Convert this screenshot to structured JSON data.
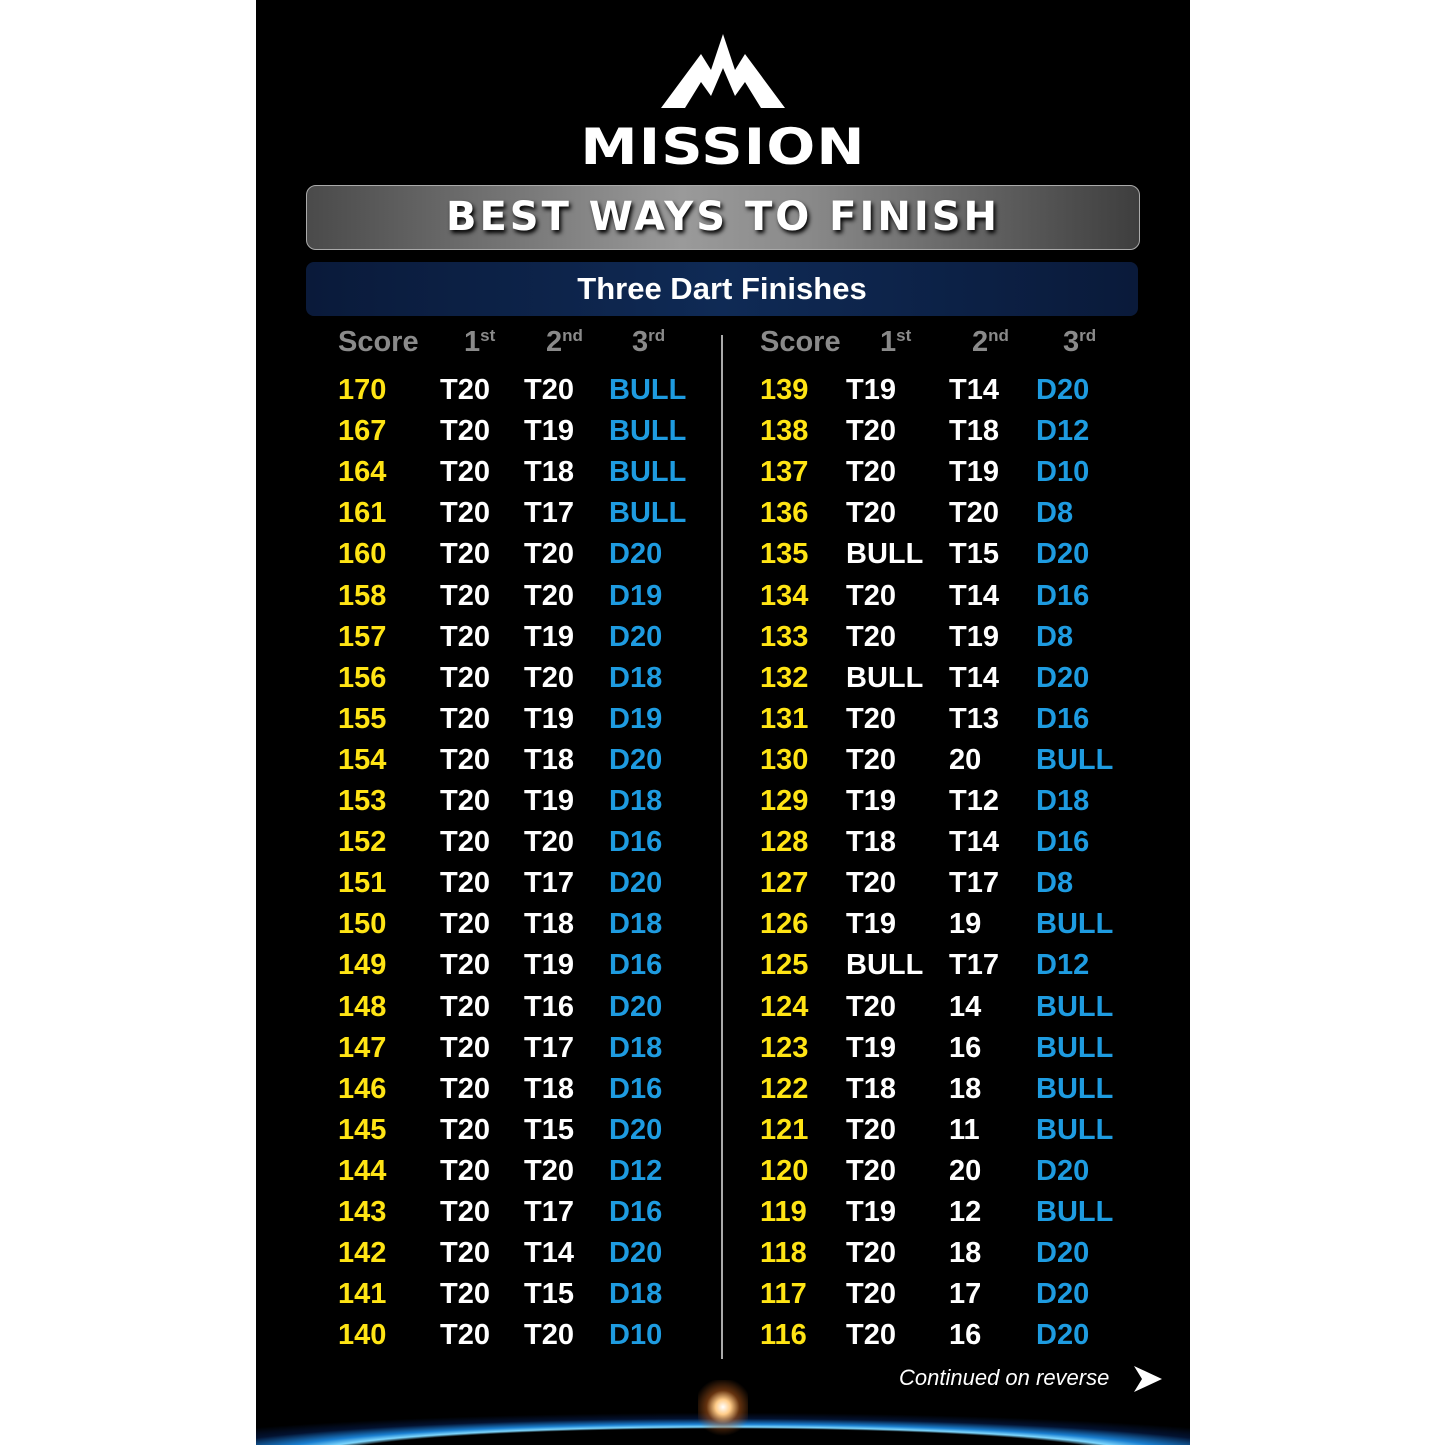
{
  "brand": "MISSION",
  "title": "BEST WAYS TO FINISH",
  "subtitle": "Three Dart Finishes",
  "headers": [
    {
      "num": "Score",
      "sup": ""
    },
    {
      "num": "1",
      "sup": "st"
    },
    {
      "num": "2",
      "sup": "nd"
    },
    {
      "num": "3",
      "sup": "rd"
    }
  ],
  "left_rows": [
    [
      "170",
      "T20",
      "T20",
      "BULL"
    ],
    [
      "167",
      "T20",
      "T19",
      "BULL"
    ],
    [
      "164",
      "T20",
      "T18",
      "BULL"
    ],
    [
      "161",
      "T20",
      "T17",
      "BULL"
    ],
    [
      "160",
      "T20",
      "T20",
      "D20"
    ],
    [
      "158",
      "T20",
      "T20",
      "D19"
    ],
    [
      "157",
      "T20",
      "T19",
      "D20"
    ],
    [
      "156",
      "T20",
      "T20",
      "D18"
    ],
    [
      "155",
      "T20",
      "T19",
      "D19"
    ],
    [
      "154",
      "T20",
      "T18",
      "D20"
    ],
    [
      "153",
      "T20",
      "T19",
      "D18"
    ],
    [
      "152",
      "T20",
      "T20",
      "D16"
    ],
    [
      "151",
      "T20",
      "T17",
      "D20"
    ],
    [
      "150",
      "T20",
      "T18",
      "D18"
    ],
    [
      "149",
      "T20",
      "T19",
      "D16"
    ],
    [
      "148",
      "T20",
      "T16",
      "D20"
    ],
    [
      "147",
      "T20",
      "T17",
      "D18"
    ],
    [
      "146",
      "T20",
      "T18",
      "D16"
    ],
    [
      "145",
      "T20",
      "T15",
      "D20"
    ],
    [
      "144",
      "T20",
      "T20",
      "D12"
    ],
    [
      "143",
      "T20",
      "T17",
      "D16"
    ],
    [
      "142",
      "T20",
      "T14",
      "D20"
    ],
    [
      "141",
      "T20",
      "T15",
      "D18"
    ],
    [
      "140",
      "T20",
      "T20",
      "D10"
    ]
  ],
  "right_rows": [
    [
      "139",
      "T19",
      "T14",
      "D20"
    ],
    [
      "138",
      "T20",
      "T18",
      "D12"
    ],
    [
      "137",
      "T20",
      "T19",
      "D10"
    ],
    [
      "136",
      "T20",
      "T20",
      "D8"
    ],
    [
      "135",
      "BULL",
      "T15",
      "D20"
    ],
    [
      "134",
      "T20",
      "T14",
      "D16"
    ],
    [
      "133",
      "T20",
      "T19",
      "D8"
    ],
    [
      "132",
      "BULL",
      "T14",
      "D20"
    ],
    [
      "131",
      "T20",
      "T13",
      "D16"
    ],
    [
      "130",
      "T20",
      "20",
      "BULL"
    ],
    [
      "129",
      "T19",
      "T12",
      "D18"
    ],
    [
      "128",
      "T18",
      "T14",
      "D16"
    ],
    [
      "127",
      "T20",
      "T17",
      "D8"
    ],
    [
      "126",
      "T19",
      "19",
      "BULL"
    ],
    [
      "125",
      "BULL",
      "T17",
      "D12"
    ],
    [
      "124",
      "T20",
      "14",
      "BULL"
    ],
    [
      "123",
      "T19",
      "16",
      "BULL"
    ],
    [
      "122",
      "T18",
      "18",
      "BULL"
    ],
    [
      "121",
      "T20",
      "11",
      "BULL"
    ],
    [
      "120",
      "T20",
      "20",
      "D20"
    ],
    [
      "119",
      "T19",
      "12",
      "BULL"
    ],
    [
      "118",
      "T20",
      "18",
      "D20"
    ],
    [
      "117",
      "T20",
      "17",
      "D20"
    ],
    [
      "116",
      "T20",
      "16",
      "D20"
    ]
  ],
  "footer": {
    "continued": "Continued on reverse",
    "arrow_icon": "arrow-right-icon"
  },
  "colors": {
    "score": "#ffe414",
    "dart": "#ffffff",
    "finish": "#1e9be0",
    "header": "#8a8a8a"
  }
}
